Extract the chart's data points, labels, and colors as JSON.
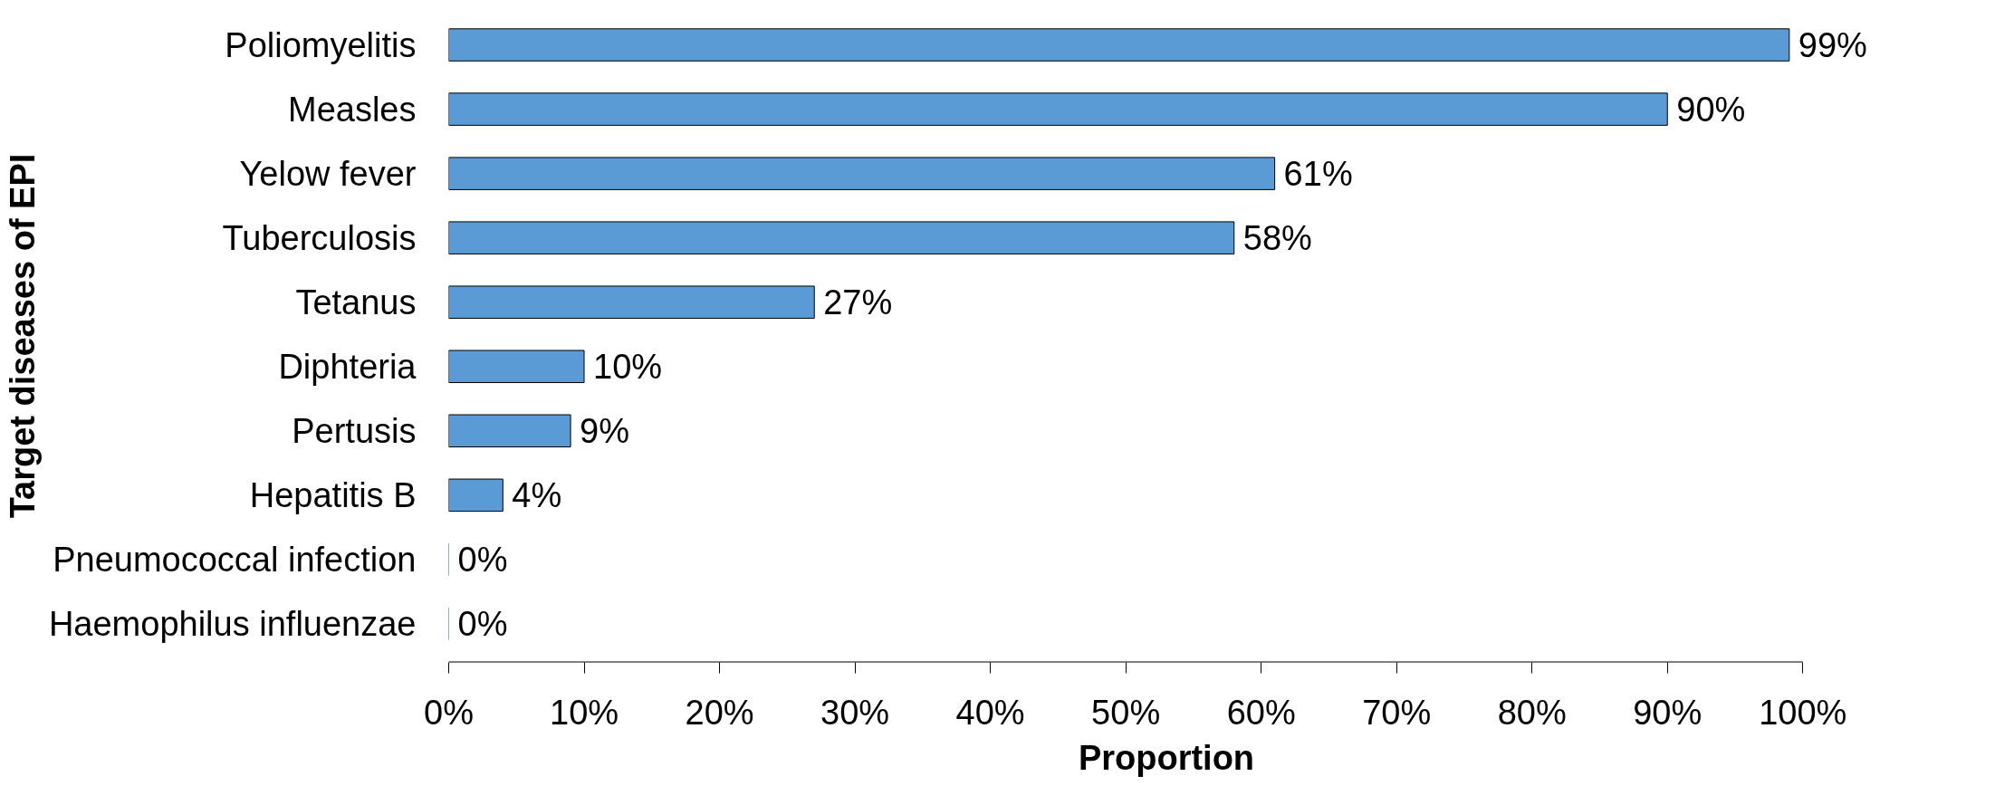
{
  "chart_data": {
    "type": "bar",
    "orientation": "horizontal",
    "xlabel": "Proportion",
    "ylabel": "Target diseases of EPI",
    "categories": [
      "Poliomyelitis",
      "Measles",
      "Yelow fever",
      "Tuberculosis",
      "Tetanus",
      "Diphteria",
      "Pertusis",
      "Hepatitis B",
      "Pneumococcal infection",
      "Haemophilus influenzae"
    ],
    "values": [
      99,
      90,
      61,
      58,
      27,
      10,
      9,
      4,
      0,
      0
    ],
    "value_labels": [
      "99%",
      "90%",
      "61%",
      "58%",
      "27%",
      "10%",
      "9%",
      "4%",
      "0%",
      "0%"
    ],
    "color": "#5b9bd5",
    "xlim": [
      0,
      100
    ],
    "xticks": [
      {
        "value": 0,
        "label": "0%"
      },
      {
        "value": 10,
        "label": "10%"
      },
      {
        "value": 20,
        "label": "20%"
      },
      {
        "value": 30,
        "label": "30%"
      },
      {
        "value": 40,
        "label": "40%"
      },
      {
        "value": 50,
        "label": "50%"
      },
      {
        "value": 60,
        "label": "60%"
      },
      {
        "value": 70,
        "label": "70%"
      },
      {
        "value": 80,
        "label": "80%"
      },
      {
        "value": 90,
        "label": "90%"
      },
      {
        "value": 100,
        "label": "100%"
      }
    ],
    "grid": false
  }
}
